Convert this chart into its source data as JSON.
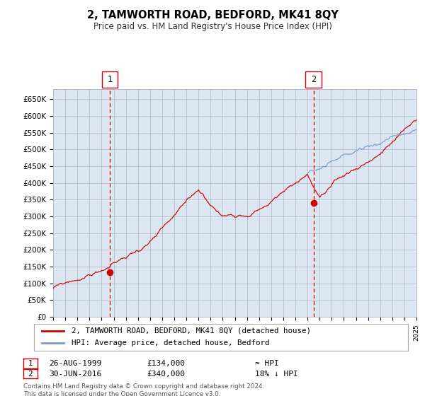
{
  "title": "2, TAMWORTH ROAD, BEDFORD, MK41 8QY",
  "subtitle": "Price paid vs. HM Land Registry's House Price Index (HPI)",
  "background_color": "#dce6f1",
  "plot_bg_color": "#dce6f1",
  "outer_bg_color": "#ffffff",
  "red_line_color": "#cc0000",
  "blue_line_color": "#7799cc",
  "grid_color": "#b0b8cc",
  "dashed_line_color": "#cc0000",
  "marker_color": "#cc0000",
  "ylim": [
    0,
    680000
  ],
  "yticks": [
    0,
    50000,
    100000,
    150000,
    200000,
    250000,
    300000,
    350000,
    400000,
    450000,
    500000,
    550000,
    600000,
    650000
  ],
  "ytick_labels": [
    "£0",
    "£50K",
    "£100K",
    "£150K",
    "£200K",
    "£250K",
    "£300K",
    "£350K",
    "£400K",
    "£450K",
    "£500K",
    "£550K",
    "£600K",
    "£650K"
  ],
  "xstart_year": 1995,
  "xend_year": 2025,
  "sale1_x": 4.67,
  "sale1_value": 134000,
  "sale2_x": 21.5,
  "sale2_value": 340000,
  "legend_line1": "2, TAMWORTH ROAD, BEDFORD, MK41 8QY (detached house)",
  "legend_line2": "HPI: Average price, detached house, Bedford",
  "sale1_date_str": "26-AUG-1999",
  "sale1_price_str": "£134,000",
  "sale1_hpi_str": "≈ HPI",
  "sale2_date_str": "30-JUN-2016",
  "sale2_price_str": "£340,000",
  "sale2_hpi_str": "18% ↓ HPI",
  "footer": "Contains HM Land Registry data © Crown copyright and database right 2024.\nThis data is licensed under the Open Government Licence v3.0."
}
